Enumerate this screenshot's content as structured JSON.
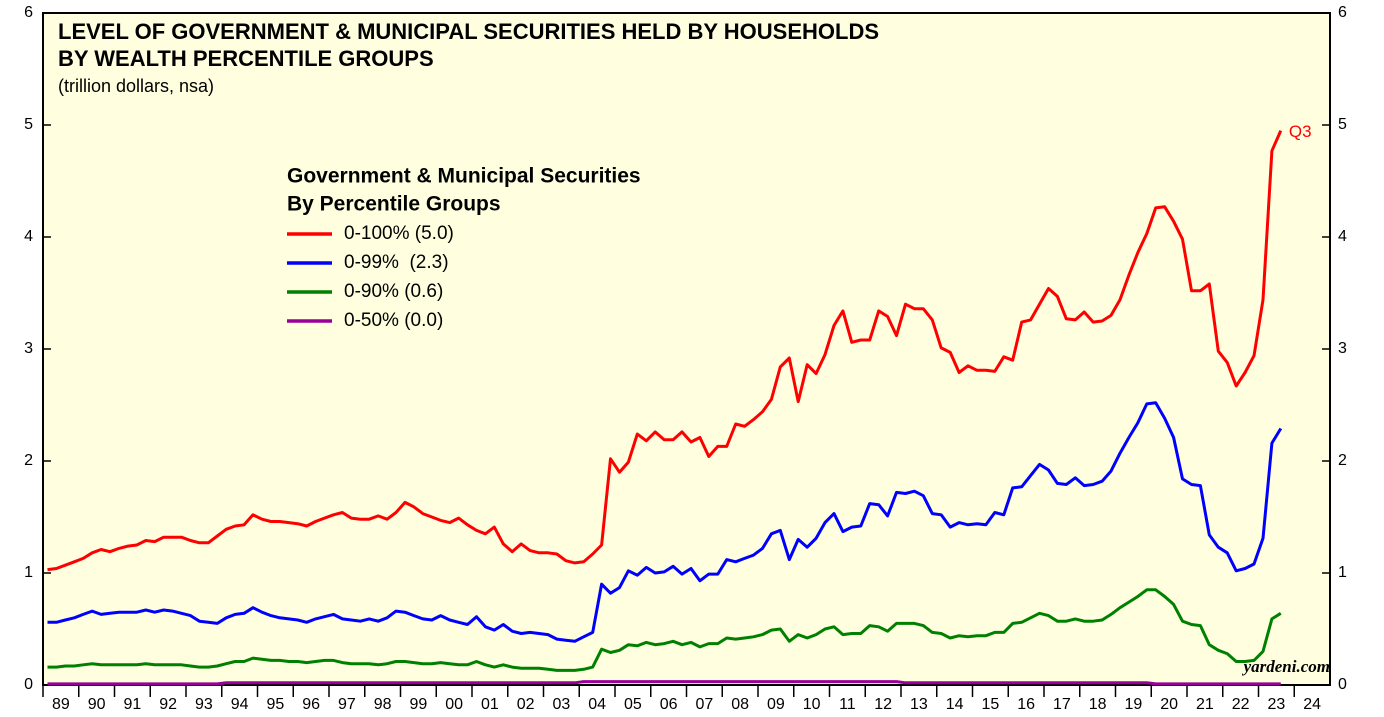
{
  "chart_data": {
    "type": "line",
    "title": [
      "LEVEL OF GOVERNMENT & MUNICIPAL SECURITIES HELD BY HOUSEHOLDS",
      "BY WEALTH PERCENTILE GROUPS"
    ],
    "subtitle": "(trillion dollars, nsa)",
    "legend_title": [
      "Government & Municipal Securities",
      "By Percentile Groups"
    ],
    "annotations": [
      "Q3",
      "yardeni.com"
    ],
    "xlim": [
      1989,
      2025
    ],
    "xticks": [
      {
        "value": 1989,
        "label": "89"
      },
      {
        "value": 1990,
        "label": "90"
      },
      {
        "value": 1991,
        "label": "91"
      },
      {
        "value": 1992,
        "label": "92"
      },
      {
        "value": 1993,
        "label": "93"
      },
      {
        "value": 1994,
        "label": "94"
      },
      {
        "value": 1995,
        "label": "95"
      },
      {
        "value": 1996,
        "label": "96"
      },
      {
        "value": 1997,
        "label": "97"
      },
      {
        "value": 1998,
        "label": "98"
      },
      {
        "value": 1999,
        "label": "99"
      },
      {
        "value": 2000,
        "label": "00"
      },
      {
        "value": 2001,
        "label": "01"
      },
      {
        "value": 2002,
        "label": "02"
      },
      {
        "value": 2003,
        "label": "03"
      },
      {
        "value": 2004,
        "label": "04"
      },
      {
        "value": 2005,
        "label": "05"
      },
      {
        "value": 2006,
        "label": "06"
      },
      {
        "value": 2007,
        "label": "07"
      },
      {
        "value": 2008,
        "label": "08"
      },
      {
        "value": 2009,
        "label": "09"
      },
      {
        "value": 2010,
        "label": "10"
      },
      {
        "value": 2011,
        "label": "11"
      },
      {
        "value": 2012,
        "label": "12"
      },
      {
        "value": 2013,
        "label": "13"
      },
      {
        "value": 2014,
        "label": "14"
      },
      {
        "value": 2015,
        "label": "15"
      },
      {
        "value": 2016,
        "label": "16"
      },
      {
        "value": 2017,
        "label": "17"
      },
      {
        "value": 2018,
        "label": "18"
      },
      {
        "value": 2019,
        "label": "19"
      },
      {
        "value": 2020,
        "label": "20"
      },
      {
        "value": 2021,
        "label": "21"
      },
      {
        "value": 2022,
        "label": "22"
      },
      {
        "value": 2023,
        "label": "23"
      },
      {
        "value": 2024,
        "label": "24"
      }
    ],
    "ylim": [
      0,
      6
    ],
    "yticks": [
      0,
      1,
      2,
      3,
      4,
      5,
      6
    ],
    "background": "#ffffe0",
    "x": [
      1989.125,
      1989.375,
      1989.625,
      1989.875,
      1990.125,
      1990.375,
      1990.625,
      1990.875,
      1991.125,
      1991.375,
      1991.625,
      1991.875,
      1992.125,
      1992.375,
      1992.625,
      1992.875,
      1993.125,
      1993.375,
      1993.625,
      1993.875,
      1994.125,
      1994.375,
      1994.625,
      1994.875,
      1995.125,
      1995.375,
      1995.625,
      1995.875,
      1996.125,
      1996.375,
      1996.625,
      1996.875,
      1997.125,
      1997.375,
      1997.625,
      1997.875,
      1998.125,
      1998.375,
      1998.625,
      1998.875,
      1999.125,
      1999.375,
      1999.625,
      1999.875,
      2000.125,
      2000.375,
      2000.625,
      2000.875,
      2001.125,
      2001.375,
      2001.625,
      2001.875,
      2002.125,
      2002.375,
      2002.625,
      2002.875,
      2003.125,
      2003.375,
      2003.625,
      2003.875,
      2004.125,
      2004.375,
      2004.625,
      2004.875,
      2005.125,
      2005.375,
      2005.625,
      2005.875,
      2006.125,
      2006.375,
      2006.625,
      2006.875,
      2007.125,
      2007.375,
      2007.625,
      2007.875,
      2008.125,
      2008.375,
      2008.625,
      2008.875,
      2009.125,
      2009.375,
      2009.625,
      2009.875,
      2010.125,
      2010.375,
      2010.625,
      2010.875,
      2011.125,
      2011.375,
      2011.625,
      2011.875,
      2012.125,
      2012.375,
      2012.625,
      2012.875,
      2013.125,
      2013.375,
      2013.625,
      2013.875,
      2014.125,
      2014.375,
      2014.625,
      2014.875,
      2015.125,
      2015.375,
      2015.625,
      2015.875,
      2016.125,
      2016.375,
      2016.625,
      2016.875,
      2017.125,
      2017.375,
      2017.625,
      2017.875,
      2018.125,
      2018.375,
      2018.625,
      2018.875,
      2019.125,
      2019.375,
      2019.625,
      2019.875,
      2020.125,
      2020.375,
      2020.625,
      2020.875,
      2021.125,
      2021.375,
      2021.625,
      2021.875,
      2022.125,
      2022.375,
      2022.625,
      2022.875,
      2023.125,
      2023.375,
      2023.625
    ],
    "series": [
      {
        "name": "0-100% (5.0)",
        "color": "#ff0000",
        "values": [
          1.03,
          1.04,
          1.07,
          1.1,
          1.13,
          1.18,
          1.21,
          1.19,
          1.22,
          1.24,
          1.25,
          1.29,
          1.28,
          1.32,
          1.32,
          1.32,
          1.29,
          1.27,
          1.27,
          1.33,
          1.39,
          1.42,
          1.43,
          1.52,
          1.48,
          1.46,
          1.46,
          1.45,
          1.44,
          1.42,
          1.46,
          1.49,
          1.52,
          1.54,
          1.49,
          1.48,
          1.48,
          1.51,
          1.48,
          1.54,
          1.63,
          1.59,
          1.53,
          1.5,
          1.47,
          1.45,
          1.49,
          1.43,
          1.38,
          1.35,
          1.41,
          1.26,
          1.19,
          1.26,
          1.2,
          1.18,
          1.18,
          1.17,
          1.11,
          1.09,
          1.1,
          1.17,
          1.25,
          2.02,
          1.9,
          1.99,
          2.24,
          2.18,
          2.26,
          2.19,
          2.19,
          2.26,
          2.17,
          2.21,
          2.04,
          2.13,
          2.13,
          2.33,
          2.31,
          2.37,
          2.44,
          2.55,
          2.84,
          2.92,
          2.53,
          2.86,
          2.78,
          2.95,
          3.21,
          3.34,
          3.06,
          3.08,
          3.08,
          3.34,
          3.29,
          3.12,
          3.4,
          3.36,
          3.36,
          3.26,
          3.01,
          2.97,
          2.79,
          2.85,
          2.81,
          2.81,
          2.8,
          2.93,
          2.9,
          3.24,
          3.26,
          3.4,
          3.54,
          3.47,
          3.27,
          3.26,
          3.33,
          3.24,
          3.25,
          3.3,
          3.44,
          3.66,
          3.86,
          4.03,
          4.26,
          4.27,
          4.14,
          3.98,
          3.52,
          3.52,
          3.58,
          2.98,
          2.88,
          2.67,
          2.79,
          2.94,
          3.44,
          4.77,
          4.95
        ]
      },
      {
        "name": "0-99%  (2.3)",
        "color": "#0000ff",
        "values": [
          0.56,
          0.56,
          0.58,
          0.6,
          0.63,
          0.66,
          0.63,
          0.64,
          0.65,
          0.65,
          0.65,
          0.67,
          0.65,
          0.67,
          0.66,
          0.64,
          0.62,
          0.57,
          0.56,
          0.55,
          0.6,
          0.63,
          0.64,
          0.69,
          0.65,
          0.62,
          0.6,
          0.59,
          0.58,
          0.56,
          0.59,
          0.61,
          0.63,
          0.59,
          0.58,
          0.57,
          0.59,
          0.57,
          0.6,
          0.66,
          0.65,
          0.62,
          0.59,
          0.58,
          0.62,
          0.58,
          0.56,
          0.54,
          0.61,
          0.52,
          0.49,
          0.54,
          0.48,
          0.46,
          0.47,
          0.46,
          0.45,
          0.41,
          0.4,
          0.39,
          0.43,
          0.47,
          0.9,
          0.82,
          0.87,
          1.02,
          0.98,
          1.05,
          1.0,
          1.01,
          1.06,
          0.99,
          1.04,
          0.93,
          0.99,
          0.99,
          1.12,
          1.1,
          1.13,
          1.16,
          1.22,
          1.35,
          1.38,
          1.12,
          1.3,
          1.23,
          1.31,
          1.45,
          1.53,
          1.37,
          1.41,
          1.42,
          1.62,
          1.61,
          1.51,
          1.72,
          1.71,
          1.73,
          1.69,
          1.53,
          1.52,
          1.41,
          1.45,
          1.43,
          1.44,
          1.43,
          1.54,
          1.52,
          1.76,
          1.77,
          1.87,
          1.97,
          1.92,
          1.8,
          1.79,
          1.85,
          1.78,
          1.79,
          1.82,
          1.91,
          2.07,
          2.21,
          2.34,
          2.51,
          2.52,
          2.38,
          2.21,
          1.84,
          1.79,
          1.78,
          1.34,
          1.23,
          1.18,
          1.02,
          1.04,
          1.08,
          1.31,
          2.16,
          2.29
        ]
      },
      {
        "name": "0-90% (0.6)",
        "color": "#008000",
        "values": [
          0.16,
          0.16,
          0.17,
          0.17,
          0.18,
          0.19,
          0.18,
          0.18,
          0.18,
          0.18,
          0.18,
          0.19,
          0.18,
          0.18,
          0.18,
          0.18,
          0.17,
          0.16,
          0.16,
          0.17,
          0.19,
          0.21,
          0.21,
          0.24,
          0.23,
          0.22,
          0.22,
          0.21,
          0.21,
          0.2,
          0.21,
          0.22,
          0.22,
          0.2,
          0.19,
          0.19,
          0.19,
          0.18,
          0.19,
          0.21,
          0.21,
          0.2,
          0.19,
          0.19,
          0.2,
          0.19,
          0.18,
          0.18,
          0.21,
          0.18,
          0.16,
          0.18,
          0.16,
          0.15,
          0.15,
          0.15,
          0.14,
          0.13,
          0.13,
          0.13,
          0.14,
          0.16,
          0.32,
          0.29,
          0.31,
          0.36,
          0.35,
          0.38,
          0.36,
          0.37,
          0.39,
          0.36,
          0.38,
          0.34,
          0.37,
          0.37,
          0.42,
          0.41,
          0.42,
          0.43,
          0.45,
          0.49,
          0.5,
          0.39,
          0.45,
          0.42,
          0.45,
          0.5,
          0.52,
          0.45,
          0.46,
          0.46,
          0.53,
          0.52,
          0.48,
          0.55,
          0.55,
          0.55,
          0.53,
          0.47,
          0.46,
          0.42,
          0.44,
          0.43,
          0.44,
          0.44,
          0.47,
          0.47,
          0.55,
          0.56,
          0.6,
          0.64,
          0.62,
          0.57,
          0.57,
          0.59,
          0.57,
          0.57,
          0.58,
          0.63,
          0.69,
          0.74,
          0.79,
          0.85,
          0.85,
          0.79,
          0.72,
          0.57,
          0.54,
          0.53,
          0.36,
          0.31,
          0.28,
          0.21,
          0.21,
          0.22,
          0.3,
          0.59,
          0.64
        ]
      },
      {
        "name": "0-50% (0.0)",
        "color": "#990099",
        "values": [
          0.01,
          0.01,
          0.01,
          0.01,
          0.01,
          0.01,
          0.01,
          0.01,
          0.01,
          0.01,
          0.01,
          0.01,
          0.01,
          0.01,
          0.01,
          0.01,
          0.01,
          0.01,
          0.01,
          0.01,
          0.02,
          0.02,
          0.02,
          0.02,
          0.02,
          0.02,
          0.02,
          0.02,
          0.02,
          0.02,
          0.02,
          0.02,
          0.02,
          0.02,
          0.02,
          0.02,
          0.02,
          0.02,
          0.02,
          0.02,
          0.02,
          0.02,
          0.02,
          0.02,
          0.02,
          0.02,
          0.02,
          0.02,
          0.02,
          0.02,
          0.02,
          0.02,
          0.02,
          0.02,
          0.02,
          0.02,
          0.02,
          0.02,
          0.02,
          0.02,
          0.03,
          0.03,
          0.03,
          0.03,
          0.03,
          0.03,
          0.03,
          0.03,
          0.03,
          0.03,
          0.03,
          0.03,
          0.03,
          0.03,
          0.03,
          0.03,
          0.03,
          0.03,
          0.03,
          0.03,
          0.03,
          0.03,
          0.03,
          0.03,
          0.03,
          0.03,
          0.03,
          0.03,
          0.03,
          0.03,
          0.03,
          0.03,
          0.03,
          0.03,
          0.03,
          0.03,
          0.02,
          0.02,
          0.02,
          0.02,
          0.02,
          0.02,
          0.02,
          0.02,
          0.02,
          0.02,
          0.02,
          0.02,
          0.02,
          0.02,
          0.02,
          0.02,
          0.02,
          0.02,
          0.02,
          0.02,
          0.02,
          0.02,
          0.02,
          0.02,
          0.02,
          0.02,
          0.02,
          0.02,
          0.01,
          0.01,
          0.01,
          0.01,
          0.01,
          0.01,
          0.01,
          0.01,
          0.01,
          0.01,
          0.01,
          0.01,
          0.01,
          0.01,
          0.01
        ]
      }
    ]
  }
}
